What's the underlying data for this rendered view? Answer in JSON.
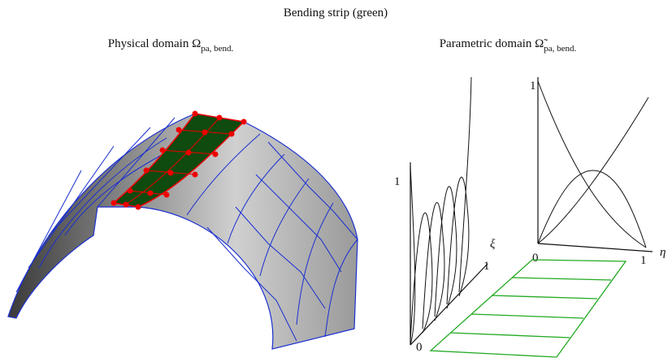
{
  "title": "Bending strip (green)",
  "physical": {
    "caption": "Physical domain Ω",
    "subscript": "pa, bend."
  },
  "parametric": {
    "caption": "Parametric domain Ω̃",
    "subscript": "pa, bend.",
    "xi_plot": {
      "top": "1",
      "origin": "0",
      "axis": "ξ",
      "end": "1"
    },
    "eta_plot": {
      "top": "1",
      "origin": "0",
      "end": "1",
      "axis": "η"
    }
  }
}
